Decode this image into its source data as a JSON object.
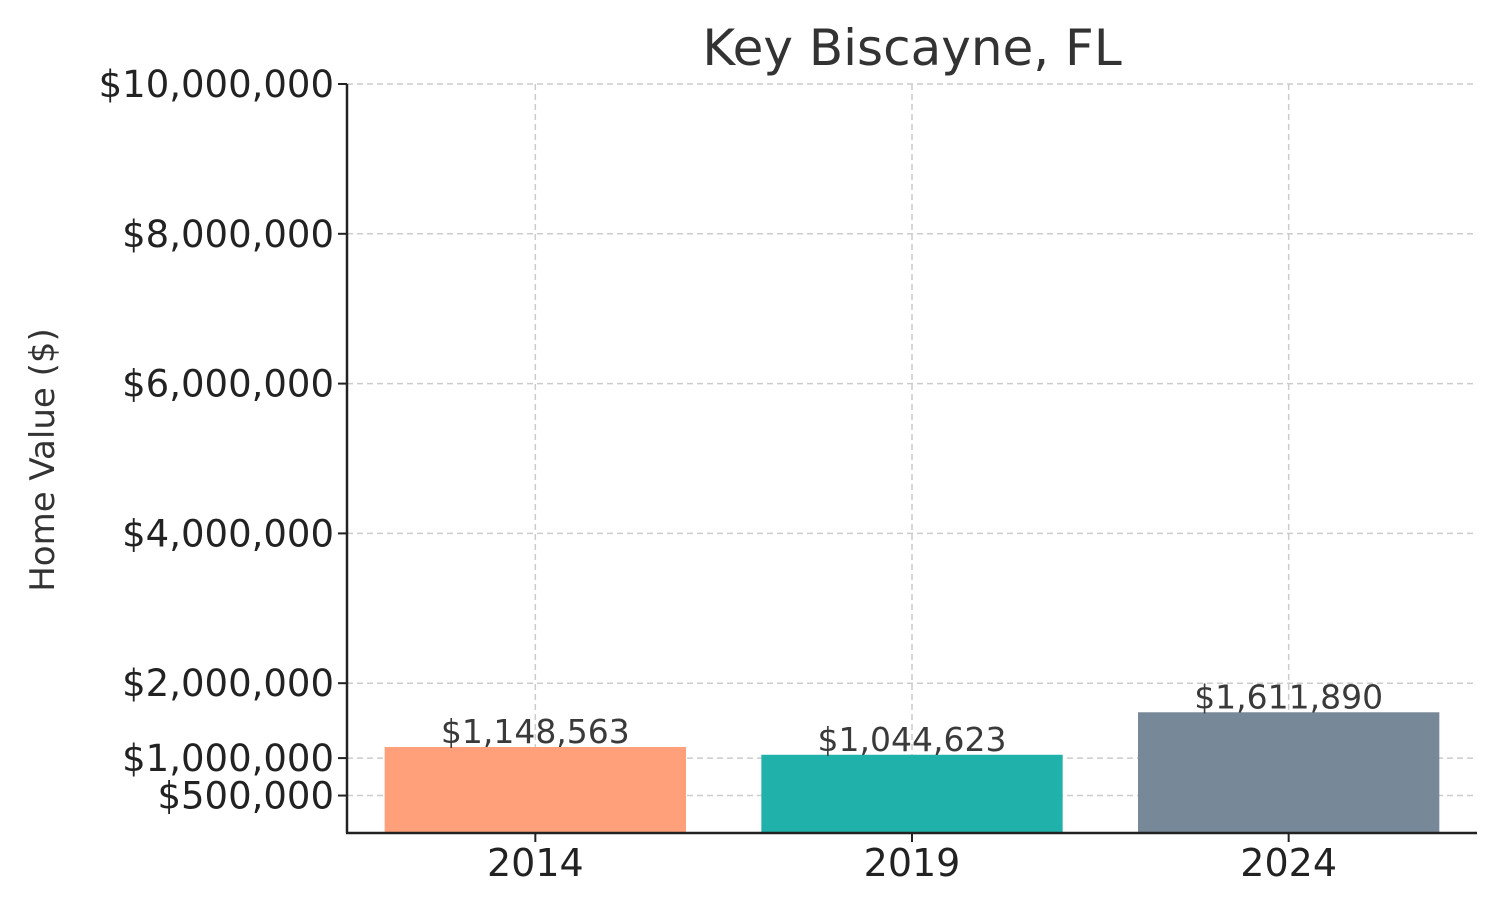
{
  "chart_data": {
    "type": "bar",
    "title": "Key Biscayne, FL",
    "xlabel": "",
    "ylabel": "Home Value ($)",
    "categories": [
      "2014",
      "2019",
      "2024"
    ],
    "values": [
      1148563,
      1044623,
      1611890
    ],
    "value_labels": [
      "$1,148,563",
      "$1,044,623",
      "$1,611,890"
    ],
    "colors": [
      "#FFA07A",
      "#20B2AA",
      "#778899"
    ],
    "ylim": [
      0,
      10000000
    ],
    "yticks": [
      500000,
      1000000,
      2000000,
      4000000,
      6000000,
      8000000,
      10000000
    ],
    "ytick_labels": [
      "$500,000",
      "$1,000,000",
      "$2,000,000",
      "$4,000,000",
      "$6,000,000",
      "$8,000,000",
      "$10,000,000"
    ],
    "grid": true,
    "legend": "none"
  }
}
